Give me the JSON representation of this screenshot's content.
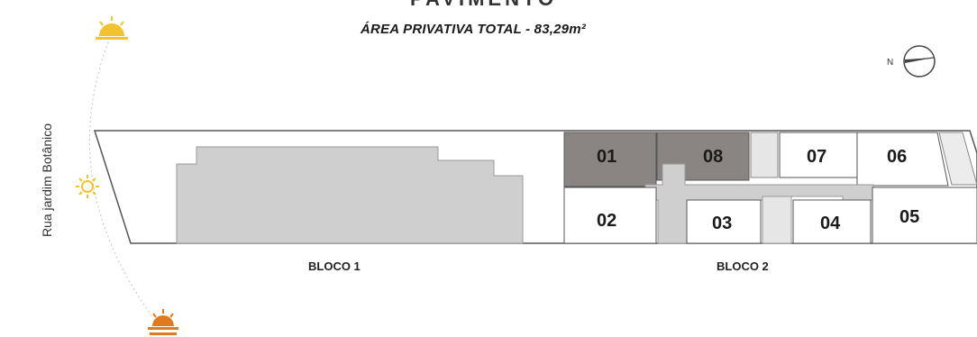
{
  "title_partial": "PAVIMENTO",
  "subtitle": "ÁREA PRIVATIVA TOTAL - 83,29m²",
  "street": "Rua jardim Botânico",
  "compass": {
    "label": "N"
  },
  "blocks": [
    {
      "label": "BLOCO 1"
    },
    {
      "label": "BLOCO 2"
    }
  ],
  "units": [
    {
      "id": "01",
      "highlighted": true
    },
    {
      "id": "08",
      "highlighted": true
    },
    {
      "id": "07",
      "highlighted": false
    },
    {
      "id": "06",
      "highlighted": false
    },
    {
      "id": "02",
      "highlighted": false
    },
    {
      "id": "03",
      "highlighted": false
    },
    {
      "id": "04",
      "highlighted": false
    },
    {
      "id": "05",
      "highlighted": false
    }
  ],
  "colors": {
    "highlight": "#8a8583",
    "building": "#cfcfcf",
    "outline": "#555555",
    "sun": "#f2c230",
    "sunset": "#e07a1f"
  },
  "icons": [
    "sunrise-icon",
    "sun-icon",
    "sunset-icon",
    "compass-icon"
  ]
}
